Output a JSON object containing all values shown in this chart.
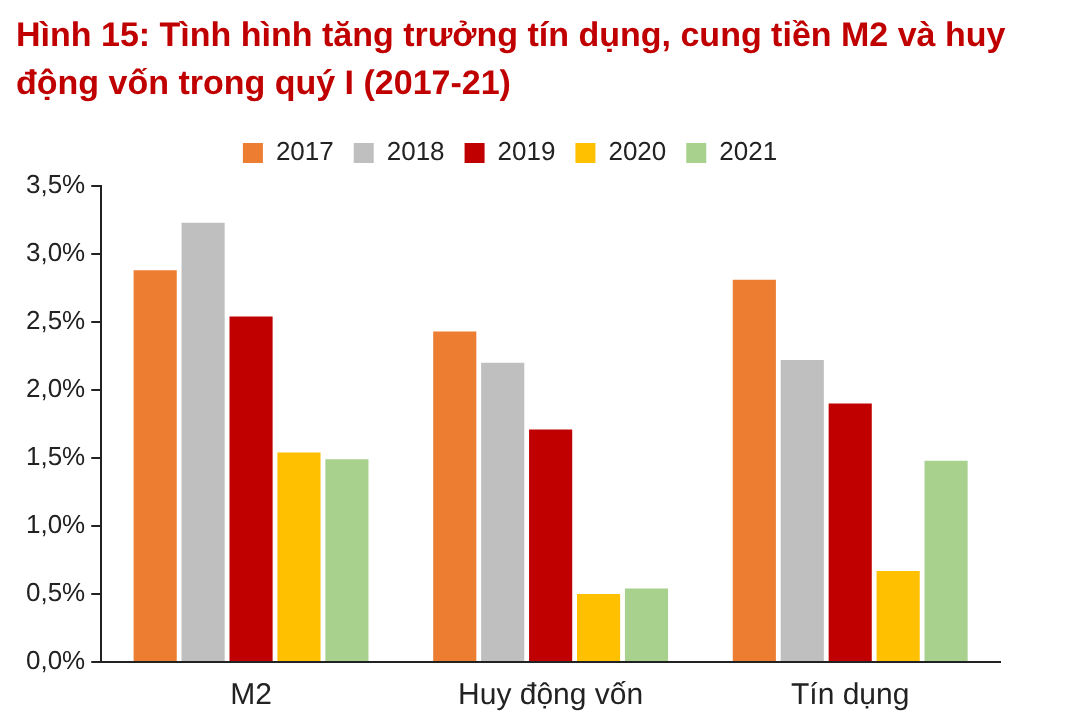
{
  "chart_data": {
    "type": "bar",
    "title": "Hình 15: Tình hình tăng trưởng tín dụng, cung tiền M2 và huy động vốn trong quý I (2017-21)",
    "categories": [
      "M2",
      "Huy động vốn",
      "Tín dụng"
    ],
    "series": [
      {
        "name": "2017",
        "color": "#ed7d31",
        "values": [
          2.88,
          2.43,
          2.81
        ]
      },
      {
        "name": "2018",
        "color": "#bfbfbf",
        "values": [
          3.23,
          2.2,
          2.22
        ]
      },
      {
        "name": "2019",
        "color": "#c00000",
        "values": [
          2.54,
          1.71,
          1.9
        ]
      },
      {
        "name": "2020",
        "color": "#ffc000",
        "values": [
          1.54,
          0.5,
          0.67
        ]
      },
      {
        "name": "2021",
        "color": "#a9d18e",
        "values": [
          1.49,
          0.54,
          1.48
        ]
      }
    ],
    "ylim": [
      0,
      3.5
    ],
    "yticks": [
      {
        "value": 0,
        "label": "0,0%"
      },
      {
        "value": 0.5,
        "label": "0,5%"
      },
      {
        "value": 1,
        "label": "1,0%"
      },
      {
        "value": 1.5,
        "label": "1,5%"
      },
      {
        "value": 2,
        "label": "2,0%"
      },
      {
        "value": 2.5,
        "label": "2,5%"
      },
      {
        "value": 3,
        "label": "3,0%"
      },
      {
        "value": 3.5,
        "label": "3,5%"
      }
    ],
    "grid": false,
    "legend": "top"
  }
}
